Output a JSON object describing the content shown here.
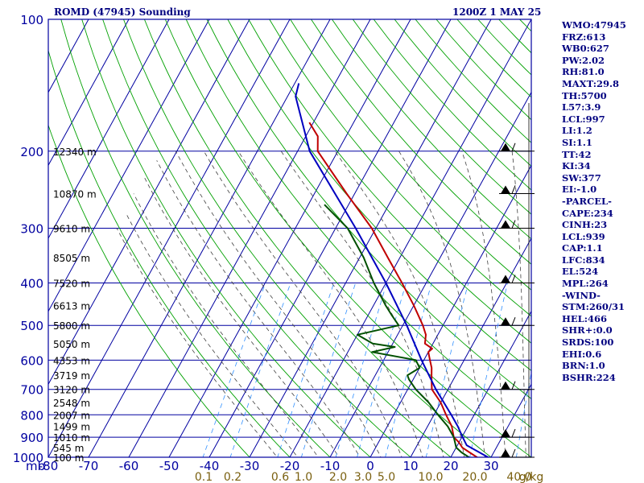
{
  "header": {
    "title_left": "ROMD (47945) Sounding",
    "title_right": "1200Z  1 MAY 25"
  },
  "indices": [
    "WMO:47945",
    "FRZ:613",
    "WB0:627",
    "PW:2.02",
    "RH:81.0",
    "MAXT:29.8",
    "TH:5700",
    "L57:3.9",
    "LCL:997",
    "LI:1.2",
    "SI:1.1",
    "TT:42",
    "KI:34",
    "SW:377",
    "EI:-1.0",
    "-PARCEL-",
    "CAPE:234",
    "CINH:23",
    "LCL:939",
    "CAP:1.1",
    "LFC:834",
    "EL:524",
    "MPL:264",
    "-WIND-",
    "STM:260/31",
    "HEL:466",
    "SHR+:0.0",
    "SRDS:100",
    "EHI:0.6",
    "BRN:1.0",
    "BSHR:224"
  ],
  "colors": {
    "frame": "#0000a0",
    "isobar": "#0000a0",
    "dry_adiabat": "#00a000",
    "moist_adiabat": "#404040",
    "mixing_ratio": "#3090ff",
    "temperature": "#c00000",
    "dewpoint": "#005000",
    "parcel": "#0000c0",
    "text": "#000080",
    "mixing_label": "#7a6010"
  },
  "chart_data": {
    "type": "skew-t sounding",
    "y_axis": {
      "label": "mb",
      "scale": "log",
      "range": [
        1000,
        100
      ],
      "ticks": [
        100,
        200,
        300,
        400,
        500,
        600,
        700,
        800,
        900,
        1000
      ]
    },
    "x_axis": {
      "label": "",
      "unit": "°C",
      "range": [
        -80,
        40
      ],
      "ticks": [
        -80,
        -70,
        -60,
        -50,
        -40,
        -30,
        -20,
        -10,
        0,
        10,
        20,
        30,
        40
      ]
    },
    "height_labels": [
      {
        "p": 200,
        "text": "12340 m"
      },
      {
        "p": 250,
        "text": "10870 m"
      },
      {
        "p": 300,
        "text": "9610 m"
      },
      {
        "p": 350,
        "text": "8505 m"
      },
      {
        "p": 400,
        "text": "7520 m"
      },
      {
        "p": 450,
        "text": "6613 m"
      },
      {
        "p": 500,
        "text": "5800 m"
      },
      {
        "p": 550,
        "text": "5050 m"
      },
      {
        "p": 600,
        "text": "4353 m"
      },
      {
        "p": 650,
        "text": "3719 m"
      },
      {
        "p": 700,
        "text": "3120 m"
      },
      {
        "p": 750,
        "text": "2548 m"
      },
      {
        "p": 800,
        "text": "2007 m"
      },
      {
        "p": 850,
        "text": "1499 m"
      },
      {
        "p": 900,
        "text": "1010 m"
      },
      {
        "p": 950,
        "text": "545 m"
      },
      {
        "p": 1000,
        "text": "100 m"
      }
    ],
    "mixing_ratio_labels": [
      "0.1",
      "0.2",
      "0.6",
      "1.0",
      "2.0",
      "3.0",
      "5.0",
      "10.0",
      "20.0",
      "40.0",
      "g/kg"
    ],
    "series": [
      {
        "name": "Temperature",
        "points": [
          {
            "p": 1005,
            "t": 27
          },
          {
            "p": 975,
            "t": 24
          },
          {
            "p": 950,
            "t": 21.5
          },
          {
            "p": 925,
            "t": 20
          },
          {
            "p": 900,
            "t": 18
          },
          {
            "p": 850,
            "t": 16
          },
          {
            "p": 800,
            "t": 13
          },
          {
            "p": 750,
            "t": 10
          },
          {
            "p": 700,
            "t": 6
          },
          {
            "p": 675,
            "t": 5
          },
          {
            "p": 650,
            "t": 4
          },
          {
            "p": 625,
            "t": 3
          },
          {
            "p": 600,
            "t": 1.5
          },
          {
            "p": 575,
            "t": 0
          },
          {
            "p": 565,
            "t": 0.5
          },
          {
            "p": 550,
            "t": -2
          },
          {
            "p": 525,
            "t": -3
          },
          {
            "p": 500,
            "t": -5
          },
          {
            "p": 450,
            "t": -10
          },
          {
            "p": 400,
            "t": -16
          },
          {
            "p": 350,
            "t": -23
          },
          {
            "p": 300,
            "t": -31
          },
          {
            "p": 250,
            "t": -42
          },
          {
            "p": 200,
            "t": -55
          },
          {
            "p": 185,
            "t": -57
          },
          {
            "p": 172,
            "t": -61
          }
        ]
      },
      {
        "name": "Dewpoint",
        "points": [
          {
            "p": 1005,
            "t": 25
          },
          {
            "p": 975,
            "t": 22
          },
          {
            "p": 950,
            "t": 20
          },
          {
            "p": 900,
            "t": 18
          },
          {
            "p": 850,
            "t": 15
          },
          {
            "p": 800,
            "t": 11
          },
          {
            "p": 750,
            "t": 7
          },
          {
            "p": 700,
            "t": 2
          },
          {
            "p": 665,
            "t": -1
          },
          {
            "p": 650,
            "t": -2
          },
          {
            "p": 625,
            "t": 0
          },
          {
            "p": 600,
            "t": -2
          },
          {
            "p": 575,
            "t": -14
          },
          {
            "p": 560,
            "t": -9
          },
          {
            "p": 550,
            "t": -15
          },
          {
            "p": 525,
            "t": -20
          },
          {
            "p": 500,
            "t": -11
          },
          {
            "p": 475,
            "t": -14
          },
          {
            "p": 450,
            "t": -17
          },
          {
            "p": 400,
            "t": -23
          },
          {
            "p": 350,
            "t": -29
          },
          {
            "p": 300,
            "t": -37
          },
          {
            "p": 265,
            "t": -46
          }
        ]
      },
      {
        "name": "Parcel",
        "points": [
          {
            "p": 1005,
            "t": 29.8
          },
          {
            "p": 939,
            "t": 22.3
          },
          {
            "p": 900,
            "t": 20.2
          },
          {
            "p": 850,
            "t": 17.5
          },
          {
            "p": 800,
            "t": 14.3
          },
          {
            "p": 700,
            "t": 7
          },
          {
            "p": 600,
            "t": -0.6
          },
          {
            "p": 500,
            "t": -9
          },
          {
            "p": 400,
            "t": -20
          },
          {
            "p": 300,
            "t": -35
          },
          {
            "p": 200,
            "t": -57
          },
          {
            "p": 150,
            "t": -68
          },
          {
            "p": 140,
            "t": -69
          }
        ]
      }
    ],
    "wind_barbs": [
      {
        "p": 200
      },
      {
        "p": 250
      },
      {
        "p": 300
      },
      {
        "p": 400
      },
      {
        "p": 500
      },
      {
        "p": 700
      },
      {
        "p": 900
      },
      {
        "p": 1000
      }
    ],
    "grid": true
  }
}
